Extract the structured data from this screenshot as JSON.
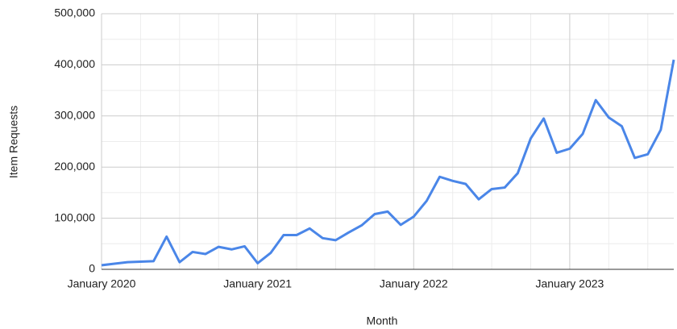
{
  "chart_data": {
    "type": "line",
    "x_label": "Month",
    "y_label": "Item Requests",
    "categories": [
      "January 2020",
      null,
      null,
      null,
      null,
      null,
      null,
      null,
      null,
      null,
      null,
      null,
      "January 2021",
      null,
      null,
      null,
      null,
      null,
      null,
      null,
      null,
      null,
      null,
      null,
      "January 2022",
      null,
      null,
      null,
      null,
      null,
      null,
      null,
      null,
      null,
      null,
      null,
      "January 2023",
      null,
      null,
      null,
      null,
      null,
      null,
      null,
      null
    ],
    "values": [
      8000,
      11000,
      14000,
      15000,
      16000,
      64000,
      14000,
      34000,
      30000,
      44000,
      39000,
      45000,
      12000,
      32000,
      67000,
      67000,
      80000,
      61000,
      57000,
      72000,
      86000,
      108000,
      113000,
      87000,
      103000,
      134000,
      181000,
      173000,
      167000,
      137000,
      157000,
      160000,
      188000,
      256000,
      295000,
      228000,
      236000,
      265000,
      331000,
      297000,
      280000,
      218000,
      225000,
      273000,
      410000
    ],
    "color": "#4a86e8",
    "ylim": [
      0,
      500000
    ],
    "yticks": [
      0,
      {
        "value": 100000,
        "label": "100,000"
      },
      {
        "value": 200000,
        "label": "200,000"
      },
      {
        "value": 300000,
        "label": "300,000"
      },
      {
        "value": 400000,
        "label": "400,000"
      },
      {
        "value": 500000,
        "label": "500,000"
      }
    ],
    "grid": true
  }
}
